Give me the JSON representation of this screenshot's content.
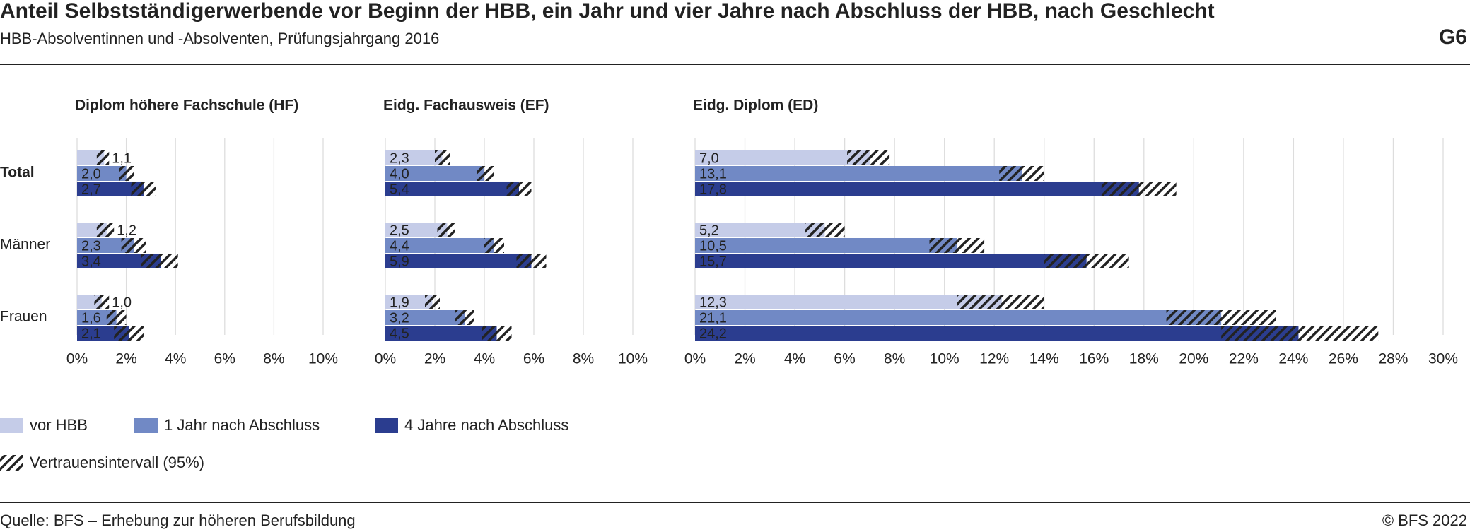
{
  "header": {
    "title": "Anteil Selbstständigerwerbende vor Beginn der HBB, ein Jahr und vier Jahre nach Abschluss der HBB, nach Geschlecht",
    "subtitle": "HBB-Absolventinnen und -Absolventen, Prüfungsjahrgang 2016",
    "code": "G6"
  },
  "categories": [
    "Total",
    "Männer",
    "Frauen"
  ],
  "legend": {
    "items": [
      {
        "name": "vor HBB",
        "color": "#c5cce8"
      },
      {
        "name": "1 Jahr nach Abschluss",
        "color": "#7189c5"
      },
      {
        "name": "4 Jahre nach Abschluss",
        "color": "#2b3d8f"
      }
    ],
    "ci_label": "Vertrauensintervall (95%)"
  },
  "chart_data": [
    {
      "type": "bar",
      "orientation": "horizontal",
      "title": "Diplom höhere Fachschule (HF)",
      "grid": true,
      "xlim": [
        0,
        10
      ],
      "xticks": [
        {
          "value": 0,
          "label": "0%"
        },
        {
          "value": 2,
          "label": "2%"
        },
        {
          "value": 4,
          "label": "4%"
        },
        {
          "value": 6,
          "label": "6%"
        },
        {
          "value": 8,
          "label": "8%"
        },
        {
          "value": 10,
          "label": "10%"
        }
      ],
      "series": [
        {
          "values": [
            1.1,
            1.2,
            1.0
          ],
          "value_labels": [
            "1,1",
            "1,2",
            "1,0"
          ],
          "ci_low": [
            0.8,
            0.8,
            0.7
          ],
          "ci_high": [
            1.3,
            1.5,
            1.3
          ]
        },
        {
          "values": [
            2.0,
            2.3,
            1.6
          ],
          "value_labels": [
            "2,0",
            "2,3",
            "1,6"
          ],
          "ci_low": [
            1.7,
            1.8,
            1.2
          ],
          "ci_high": [
            2.3,
            2.8,
            2.0
          ]
        },
        {
          "values": [
            2.7,
            3.4,
            2.1
          ],
          "value_labels": [
            "2,7",
            "3,4",
            "2,1"
          ],
          "ci_low": [
            2.2,
            2.6,
            1.5
          ],
          "ci_high": [
            3.2,
            4.1,
            2.7
          ]
        }
      ]
    },
    {
      "type": "bar",
      "orientation": "horizontal",
      "title": "Eidg. Fachausweis (EF)",
      "grid": true,
      "xlim": [
        0,
        10
      ],
      "xticks": [
        {
          "value": 0,
          "label": "0%"
        },
        {
          "value": 2,
          "label": "2%"
        },
        {
          "value": 4,
          "label": "4%"
        },
        {
          "value": 6,
          "label": "6%"
        },
        {
          "value": 8,
          "label": "8%"
        },
        {
          "value": 10,
          "label": "10%"
        }
      ],
      "series": [
        {
          "values": [
            2.3,
            2.5,
            1.9
          ],
          "value_labels": [
            "2,3",
            "2,5",
            "1,9"
          ],
          "ci_low": [
            2.0,
            2.1,
            1.6
          ],
          "ci_high": [
            2.6,
            2.8,
            2.2
          ]
        },
        {
          "values": [
            4.0,
            4.4,
            3.2
          ],
          "value_labels": [
            "4,0",
            "4,4",
            "3,2"
          ],
          "ci_low": [
            3.7,
            4.0,
            2.8
          ],
          "ci_high": [
            4.4,
            4.8,
            3.6
          ]
        },
        {
          "values": [
            5.4,
            5.9,
            4.5
          ],
          "value_labels": [
            "5,4",
            "5,9",
            "4,5"
          ],
          "ci_low": [
            4.9,
            5.3,
            3.9
          ],
          "ci_high": [
            5.9,
            6.5,
            5.1
          ]
        }
      ]
    },
    {
      "type": "bar",
      "orientation": "horizontal",
      "title": "Eidg. Diplom (ED)",
      "grid": true,
      "xlim": [
        0,
        30
      ],
      "xticks": [
        {
          "value": 0,
          "label": "0%"
        },
        {
          "value": 2,
          "label": "2%"
        },
        {
          "value": 4,
          "label": "4%"
        },
        {
          "value": 6,
          "label": "6%"
        },
        {
          "value": 8,
          "label": "8%"
        },
        {
          "value": 10,
          "label": "10%"
        },
        {
          "value": 12,
          "label": "12%"
        },
        {
          "value": 14,
          "label": "14%"
        },
        {
          "value": 16,
          "label": "16%"
        },
        {
          "value": 18,
          "label": "18%"
        },
        {
          "value": 20,
          "label": "20%"
        },
        {
          "value": 22,
          "label": "22%"
        },
        {
          "value": 24,
          "label": "24%"
        },
        {
          "value": 26,
          "label": "26%"
        },
        {
          "value": 28,
          "label": "28%"
        },
        {
          "value": 30,
          "label": "30%"
        }
      ],
      "series": [
        {
          "values": [
            7.0,
            5.2,
            12.3
          ],
          "value_labels": [
            "7,0",
            "5,2",
            "12,3"
          ],
          "ci_low": [
            6.1,
            4.4,
            10.5
          ],
          "ci_high": [
            7.8,
            6.0,
            14.0
          ]
        },
        {
          "values": [
            13.1,
            10.5,
            21.1
          ],
          "value_labels": [
            "13,1",
            "10,5",
            "21,1"
          ],
          "ci_low": [
            12.2,
            9.4,
            18.9
          ],
          "ci_high": [
            14.0,
            11.6,
            23.3
          ]
        },
        {
          "values": [
            17.8,
            15.7,
            24.2
          ],
          "value_labels": [
            "17,8",
            "15,7",
            "24,2"
          ],
          "ci_low": [
            16.3,
            14.0,
            21.1
          ],
          "ci_high": [
            19.3,
            17.4,
            27.4
          ]
        }
      ]
    }
  ],
  "footer": {
    "source": "Quelle: BFS – Erhebung zur höheren Berufsbildung",
    "copyright": "© BFS 2022"
  }
}
